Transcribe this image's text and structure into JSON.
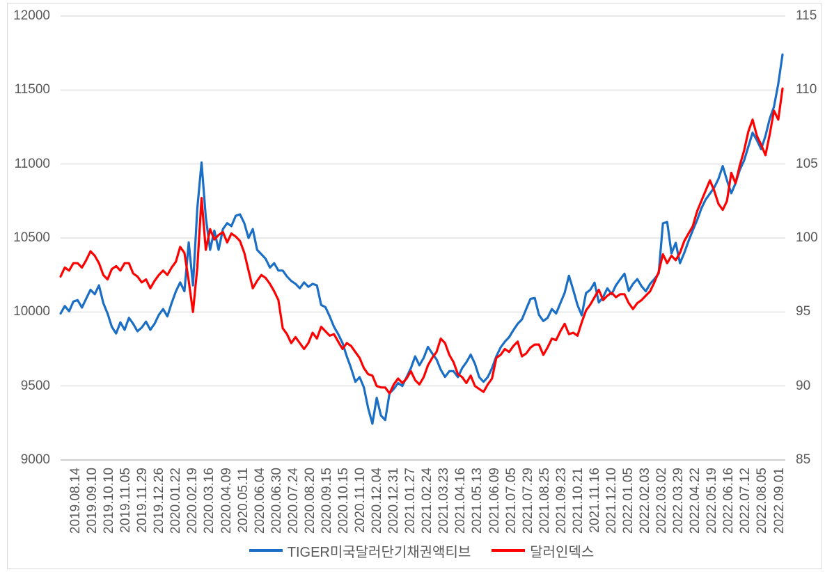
{
  "figure": {
    "background": "#ffffff",
    "border_color": "#d9d9d9",
    "gridline_color": "#d9d9d9",
    "baseline_color": "#bfbfbf",
    "tick_text_color": "#595959"
  },
  "legend": {
    "items": [
      {
        "label": "TIGER미국달러단기채권액티브",
        "color": "#1a6ec5"
      },
      {
        "label": "달러인덱스",
        "color": "#fe0000"
      }
    ]
  },
  "axes": {
    "left": {
      "tick_labels": [
        "12000",
        "11500",
        "11000",
        "10500",
        "10000",
        "9500",
        "9000"
      ]
    },
    "right": {
      "tick_labels": [
        "115",
        "110",
        "105",
        "100",
        "95",
        "90",
        "85"
      ]
    }
  },
  "chart_data": {
    "type": "line",
    "title": "",
    "grid": true,
    "legend_position": "bottom",
    "left_ylim": [
      9000,
      12000
    ],
    "right_ylim": [
      85,
      115
    ],
    "x_tick_labels": [
      "2019.08.14",
      "2019.09.10",
      "2019.10.10",
      "2019.11.05",
      "2019.11.29",
      "2019.12.26",
      "2020.01.22",
      "2020.02.19",
      "2020.03.16",
      "2020.04.09",
      "2020.05.11",
      "2020.06.04",
      "2020.06.30",
      "2020.07.24",
      "2020.08.20",
      "2020.09.15",
      "2020.10.15",
      "2020.11.10",
      "2020.12.04",
      "2020.12.31",
      "2021.01.27",
      "2021.02.24",
      "2021.03.23",
      "2021.04.16",
      "2021.05.13",
      "2021.06.09",
      "2021.07.05",
      "2021.07.29",
      "2021.08.25",
      "2021.09.23",
      "2021.10.21",
      "2021.11.16",
      "2021.12.10",
      "2022.01.05",
      "2022.02.03",
      "2022.03.02",
      "2022.03.29",
      "2022.04.22",
      "2022.05.19",
      "2022.06.16",
      "2022.07.12",
      "2022.08.05",
      "2022.09.01"
    ],
    "series": [
      {
        "name": "TIGER미국달러단기채권액티브",
        "axis": "left",
        "color": "#1a6ec5",
        "values": [
          9990,
          10040,
          10005,
          10070,
          10080,
          10030,
          10090,
          10150,
          10120,
          10180,
          10060,
          9990,
          9900,
          9855,
          9930,
          9880,
          9960,
          9920,
          9870,
          9895,
          9935,
          9880,
          9920,
          9980,
          10020,
          9970,
          10060,
          10140,
          10200,
          10140,
          10470,
          10180,
          10700,
          11010,
          10640,
          10420,
          10550,
          10420,
          10560,
          10600,
          10580,
          10650,
          10660,
          10600,
          10500,
          10560,
          10420,
          10390,
          10360,
          10300,
          10330,
          10280,
          10280,
          10240,
          10210,
          10190,
          10160,
          10200,
          10170,
          10190,
          10180,
          10047,
          10033,
          9970,
          9900,
          9850,
          9790,
          9700,
          9620,
          9528,
          9560,
          9490,
          9350,
          9245,
          9420,
          9300,
          9270,
          9450,
          9480,
          9520,
          9500,
          9560,
          9620,
          9700,
          9640,
          9690,
          9764,
          9720,
          9680,
          9610,
          9561,
          9600,
          9600,
          9560,
          9620,
          9660,
          9712,
          9650,
          9560,
          9528,
          9560,
          9620,
          9700,
          9760,
          9800,
          9830,
          9877,
          9920,
          9950,
          10020,
          10089,
          10094,
          9980,
          9939,
          9960,
          10020,
          9990,
          10060,
          10130,
          10245,
          10150,
          10047,
          9977,
          10127,
          10150,
          10198,
          10064,
          10100,
          10160,
          10120,
          10180,
          10220,
          10259,
          10142,
          10190,
          10222,
          10174,
          10140,
          10190,
          10222,
          10260,
          10599,
          10608,
          10396,
          10467,
          10330,
          10400,
          10480,
          10552,
          10620,
          10700,
          10760,
          10800,
          10840,
          10900,
          10986,
          10890,
          10802,
          10870,
          10960,
          11024,
          11118,
          11212,
          11160,
          11100,
          11190,
          11306,
          11387,
          11542,
          11740
        ]
      },
      {
        "name": "달러인덱스",
        "axis": "right",
        "color": "#fe0000",
        "values": [
          97.4,
          98.0,
          97.8,
          98.3,
          98.3,
          98.0,
          98.5,
          99.1,
          98.8,
          98.3,
          97.5,
          97.2,
          97.9,
          98.1,
          97.8,
          98.3,
          98.3,
          97.6,
          97.4,
          97.0,
          97.2,
          96.6,
          97.1,
          97.5,
          97.8,
          97.5,
          98.0,
          98.4,
          99.4,
          99.0,
          97.1,
          95.0,
          98.0,
          102.7,
          99.2,
          100.6,
          99.9,
          100.2,
          100.4,
          99.7,
          100.3,
          100.1,
          99.8,
          99.0,
          97.8,
          96.6,
          97.1,
          97.5,
          97.3,
          96.9,
          96.4,
          95.8,
          93.9,
          93.5,
          92.9,
          93.3,
          92.9,
          92.5,
          92.9,
          93.6,
          93.2,
          94.0,
          93.7,
          93.4,
          93.5,
          93.0,
          92.5,
          92.9,
          92.7,
          92.3,
          91.9,
          91.2,
          90.8,
          90.7,
          90.0,
          89.9,
          89.9,
          89.5,
          90.1,
          90.5,
          90.2,
          90.5,
          91.0,
          90.4,
          90.1,
          90.6,
          91.4,
          91.9,
          92.3,
          93.2,
          92.9,
          92.1,
          91.6,
          90.8,
          90.6,
          90.2,
          90.7,
          90.0,
          89.8,
          89.6,
          90.1,
          90.5,
          91.9,
          92.1,
          92.5,
          92.3,
          92.7,
          93.0,
          92.0,
          92.2,
          92.6,
          92.8,
          92.8,
          92.1,
          92.6,
          93.2,
          93.1,
          93.7,
          94.2,
          93.5,
          93.6,
          93.4,
          94.3,
          95.1,
          95.5,
          96.0,
          96.5,
          95.8,
          96.1,
          96.3,
          96.0,
          96.2,
          96.2,
          95.6,
          95.2,
          95.6,
          95.8,
          96.1,
          96.4,
          97.0,
          97.7,
          98.9,
          98.3,
          98.8,
          98.5,
          99.0,
          99.8,
          100.3,
          100.8,
          101.8,
          102.5,
          103.2,
          103.9,
          103.2,
          102.3,
          101.9,
          102.5,
          104.4,
          103.7,
          104.9,
          105.9,
          107.2,
          108.0,
          106.9,
          106.3,
          105.6,
          107.0,
          108.6,
          108.0,
          110.1
        ]
      }
    ]
  }
}
